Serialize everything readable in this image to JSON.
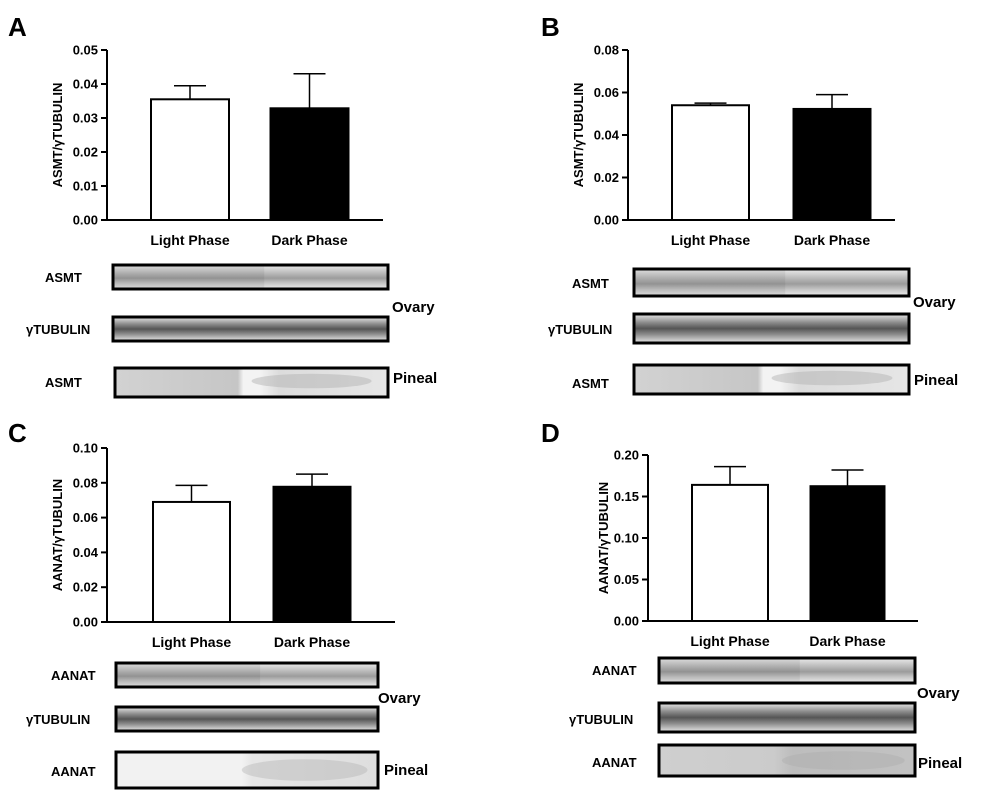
{
  "chart_data": [
    {
      "panel": "A",
      "type": "bar",
      "categories": [
        "Light Phase",
        "Dark Phase"
      ],
      "values": [
        0.0355,
        0.033
      ],
      "errors": [
        0.004,
        0.01
      ],
      "bar_colors": [
        "#ffffff",
        "#000000"
      ],
      "ylabel": "ASMT/γTUBULIN",
      "ylim": [
        0,
        0.05
      ],
      "yticks": [
        "0.00",
        "0.01",
        "0.02",
        "0.03",
        "0.04",
        "0.05"
      ],
      "blots": [
        {
          "label": "ASMT",
          "group": "Ovary"
        },
        {
          "label": "γTUBULIN",
          "group": "Ovary"
        },
        {
          "label": "ASMT",
          "group": "Pineal"
        }
      ],
      "tissues": [
        "Ovary",
        "Pineal"
      ]
    },
    {
      "panel": "B",
      "type": "bar",
      "categories": [
        "Light Phase",
        "Dark Phase"
      ],
      "values": [
        0.054,
        0.0525
      ],
      "errors": [
        0.001,
        0.0065
      ],
      "bar_colors": [
        "#ffffff",
        "#000000"
      ],
      "ylabel": "ASMT/γTUBULIN",
      "ylim": [
        0,
        0.08
      ],
      "yticks": [
        "0.00",
        "0.02",
        "0.04",
        "0.06",
        "0.08"
      ],
      "blots": [
        {
          "label": "ASMT",
          "group": "Ovary"
        },
        {
          "label": "γTUBULIN",
          "group": "Ovary"
        },
        {
          "label": "ASMT",
          "group": "Pineal"
        }
      ],
      "tissues": [
        "Ovary",
        "Pineal"
      ]
    },
    {
      "panel": "C",
      "type": "bar",
      "categories": [
        "Light Phase",
        "Dark Phase"
      ],
      "values": [
        0.069,
        0.078
      ],
      "errors": [
        0.0095,
        0.007
      ],
      "bar_colors": [
        "#ffffff",
        "#000000"
      ],
      "ylabel": "AANAT/γTUBULIN",
      "ylim": [
        0,
        0.1
      ],
      "yticks": [
        "0.00",
        "0.02",
        "0.04",
        "0.06",
        "0.08",
        "0.10"
      ],
      "blots": [
        {
          "label": "AANAT",
          "group": "Ovary"
        },
        {
          "label": "γTUBULIN",
          "group": "Ovary"
        },
        {
          "label": "AANAT",
          "group": "Pineal"
        }
      ],
      "tissues": [
        "Ovary",
        "Pineal"
      ]
    },
    {
      "panel": "D",
      "type": "bar",
      "categories": [
        "Light Phase",
        "Dark Phase"
      ],
      "values": [
        0.164,
        0.163
      ],
      "errors": [
        0.022,
        0.019
      ],
      "bar_colors": [
        "#ffffff",
        "#000000"
      ],
      "ylabel": "AANAT/γTUBULIN",
      "ylim": [
        0,
        0.2
      ],
      "yticks": [
        "0.00",
        "0.05",
        "0.10",
        "0.15",
        "0.20"
      ],
      "blots": [
        {
          "label": "AANAT",
          "group": "Ovary"
        },
        {
          "label": "γTUBULIN",
          "group": "Ovary"
        },
        {
          "label": "AANAT",
          "group": "Pineal"
        }
      ],
      "tissues": [
        "Ovary",
        "Pineal"
      ]
    }
  ]
}
